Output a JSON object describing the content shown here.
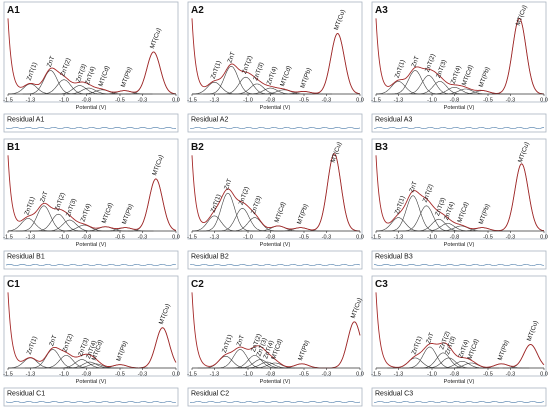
{
  "chart_data": [
    {
      "id": "A1",
      "type": "line",
      "residual_label": "Residual  A1",
      "xlabel": "Potential (V)",
      "xlim": [
        -1.5,
        0
      ],
      "xticks": [
        "-1.5",
        "-1.3",
        "-1.0",
        "-0.8",
        "-0.5",
        "-0.3",
        "0.0"
      ],
      "peaks": [
        {
          "label": "ZnT(1)",
          "x": -1.3,
          "y": 0.12
        },
        {
          "label": "ZnT",
          "x": -1.12,
          "y": 0.28
        },
        {
          "label": "ZnT(2)",
          "x": -1.0,
          "y": 0.17
        },
        {
          "label": "ZnT(3)",
          "x": -0.86,
          "y": 0.1
        },
        {
          "label": "ZnT(4)",
          "x": -0.78,
          "y": 0.07
        },
        {
          "label": "MT(Cd)",
          "x": -0.66,
          "y": 0.05
        },
        {
          "label": "MT(Pb)",
          "x": -0.46,
          "y": 0.04
        },
        {
          "label": "MT(Cu)",
          "x": -0.2,
          "y": 0.5
        }
      ]
    },
    {
      "id": "A2",
      "type": "line",
      "residual_label": "Residual  A2",
      "xlabel": "Potential (V)",
      "xlim": [
        -1.5,
        0
      ],
      "xticks": [
        "-1.5",
        "-1.3",
        "-1.0",
        "-0.8",
        "-0.5",
        "-0.3",
        "0.0"
      ],
      "peaks": [
        {
          "label": "ZnT(1)",
          "x": -1.3,
          "y": 0.14
        },
        {
          "label": "ZnT",
          "x": -1.15,
          "y": 0.33
        },
        {
          "label": "ZnT(2)",
          "x": -1.02,
          "y": 0.2
        },
        {
          "label": "ZnT(3)",
          "x": -0.92,
          "y": 0.12
        },
        {
          "label": "ZnT(4)",
          "x": -0.8,
          "y": 0.07
        },
        {
          "label": "MT(Cd)",
          "x": -0.68,
          "y": 0.05
        },
        {
          "label": "MT(Pb)",
          "x": -0.5,
          "y": 0.03
        },
        {
          "label": "MT(Cu)",
          "x": -0.2,
          "y": 0.72
        }
      ]
    },
    {
      "id": "A3",
      "type": "line",
      "residual_label": "Residual  A3",
      "xlabel": "Potential (V)",
      "xlim": [
        -1.5,
        0
      ],
      "xticks": [
        "-1.5",
        "-1.3",
        "-1.0",
        "-0.8",
        "-0.5",
        "-0.3",
        "0.0"
      ],
      "peaks": [
        {
          "label": "ZnT(1)",
          "x": -1.3,
          "y": 0.15
        },
        {
          "label": "ZnT",
          "x": -1.15,
          "y": 0.28
        },
        {
          "label": "ZnT(2)",
          "x": -1.03,
          "y": 0.22
        },
        {
          "label": "ZnT(3)",
          "x": -0.93,
          "y": 0.15
        },
        {
          "label": "ZnT(4)",
          "x": -0.8,
          "y": 0.08
        },
        {
          "label": "MT(Cd)",
          "x": -0.7,
          "y": 0.06
        },
        {
          "label": "MT(Pb)",
          "x": -0.55,
          "y": 0.04
        },
        {
          "label": "MT(Cu)",
          "x": -0.22,
          "y": 0.9
        }
      ]
    },
    {
      "id": "B1",
      "type": "line",
      "residual_label": "Residual  B1",
      "xlabel": "Potential (V)",
      "xlim": [
        -1.5,
        0
      ],
      "xticks": [
        "-1.5",
        "-1.3",
        "-1.0",
        "-0.8",
        "-0.5",
        "-0.3",
        "0.0"
      ],
      "peaks": [
        {
          "label": "ZnT(1)",
          "x": -1.32,
          "y": 0.15
        },
        {
          "label": "ZnT",
          "x": -1.18,
          "y": 0.3
        },
        {
          "label": "ZnT(2)",
          "x": -1.05,
          "y": 0.2
        },
        {
          "label": "ZnT(3)",
          "x": -0.95,
          "y": 0.13
        },
        {
          "label": "ZnT(4)",
          "x": -0.82,
          "y": 0.07
        },
        {
          "label": "MT(Cd)",
          "x": -0.63,
          "y": 0.05
        },
        {
          "label": "MT(Pb)",
          "x": -0.45,
          "y": 0.04
        },
        {
          "label": "MT(Cu)",
          "x": -0.18,
          "y": 0.62
        }
      ]
    },
    {
      "id": "B2",
      "type": "line",
      "residual_label": "Residual  B2",
      "xlabel": "Potential (V)",
      "xlim": [
        -1.5,
        0
      ],
      "xticks": [
        "-1.5",
        "-1.3",
        "-1.0",
        "-0.8",
        "-0.5",
        "-0.3",
        "0.0"
      ],
      "peaks": [
        {
          "label": "ZnT(1)",
          "x": -1.3,
          "y": 0.18
        },
        {
          "label": "ZnT",
          "x": -1.18,
          "y": 0.45
        },
        {
          "label": "ZnT(2)",
          "x": -1.05,
          "y": 0.27
        },
        {
          "label": "ZnT(3)",
          "x": -0.94,
          "y": 0.16
        },
        {
          "label": "MT(Cd)",
          "x": -0.73,
          "y": 0.06
        },
        {
          "label": "MT(Pb)",
          "x": -0.53,
          "y": 0.04
        },
        {
          "label": "MT(Cu)",
          "x": -0.23,
          "y": 0.92
        }
      ]
    },
    {
      "id": "B3",
      "type": "line",
      "residual_label": "Residual  B3",
      "xlabel": "Potential (V)",
      "xlim": [
        -1.5,
        0
      ],
      "xticks": [
        "-1.5",
        "-1.3",
        "-1.0",
        "-0.8",
        "-0.5",
        "-0.3",
        "0.0"
      ],
      "peaks": [
        {
          "label": "ZnT(1)",
          "x": -1.3,
          "y": 0.16
        },
        {
          "label": "ZnT",
          "x": -1.17,
          "y": 0.42
        },
        {
          "label": "ZnT(2)",
          "x": -1.05,
          "y": 0.3
        },
        {
          "label": "ZnT(3)",
          "x": -0.94,
          "y": 0.14
        },
        {
          "label": "ZnT(4)",
          "x": -0.86,
          "y": 0.09
        },
        {
          "label": "MT(Cd)",
          "x": -0.74,
          "y": 0.06
        },
        {
          "label": "MT(Pb)",
          "x": -0.55,
          "y": 0.04
        },
        {
          "label": "MT(Cu)",
          "x": -0.2,
          "y": 0.8
        }
      ]
    },
    {
      "id": "C1",
      "type": "line",
      "residual_label": "Residual  C1",
      "xlabel": "Potential (V)",
      "xlim": [
        -1.5,
        0
      ],
      "xticks": [
        "-1.5",
        "-1.3",
        "-1.0",
        "-0.8",
        "-0.5",
        "-0.3",
        "0.0"
      ],
      "peaks": [
        {
          "label": "ZnT(1)",
          "x": -1.3,
          "y": 0.12
        },
        {
          "label": "ZnT",
          "x": -1.1,
          "y": 0.22
        },
        {
          "label": "ZnT(2)",
          "x": -0.98,
          "y": 0.15
        },
        {
          "label": "ZnT(3)",
          "x": -0.84,
          "y": 0.1
        },
        {
          "label": "ZnT(4)",
          "x": -0.77,
          "y": 0.07
        },
        {
          "label": "MT(Cd)",
          "x": -0.72,
          "y": 0.05
        },
        {
          "label": "MT(Pb)",
          "x": -0.5,
          "y": 0.04
        },
        {
          "label": "MT(Cu)",
          "x": -0.12,
          "y": 0.48
        }
      ]
    },
    {
      "id": "C2",
      "type": "line",
      "residual_label": "Residual  C2",
      "xlabel": "Potential (V)",
      "xlim": [
        -1.5,
        0
      ],
      "xticks": [
        "-1.5",
        "-1.3",
        "-1.0",
        "-0.8",
        "-0.5",
        "-0.3",
        "0.0"
      ],
      "peaks": [
        {
          "label": "ZnT(1)",
          "x": -1.2,
          "y": 0.14
        },
        {
          "label": "ZnT",
          "x": -1.07,
          "y": 0.22
        },
        {
          "label": "ZnT(2)",
          "x": -0.94,
          "y": 0.15
        },
        {
          "label": "ZnT(3)",
          "x": -0.89,
          "y": 0.1
        },
        {
          "label": "ZnT(4)",
          "x": -0.83,
          "y": 0.07
        },
        {
          "label": "MT(Cd)",
          "x": -0.76,
          "y": 0.06
        },
        {
          "label": "MT(Pb)",
          "x": -0.52,
          "y": 0.05
        },
        {
          "label": "MT(Cu)",
          "x": -0.05,
          "y": 0.55
        }
      ]
    },
    {
      "id": "C3",
      "type": "line",
      "residual_label": "Residual  C3",
      "xlabel": "Potential (V)",
      "xlim": [
        -1.5,
        0
      ],
      "xticks": [
        "-1.5",
        "-1.3",
        "-1.0",
        "-0.8",
        "-0.5",
        "-0.3",
        "0.0"
      ],
      "peaks": [
        {
          "label": "ZnT(1)",
          "x": -1.15,
          "y": 0.12
        },
        {
          "label": "ZnT",
          "x": -1.02,
          "y": 0.25
        },
        {
          "label": "ZnT(2)",
          "x": -0.9,
          "y": 0.18
        },
        {
          "label": "ZnT(3)",
          "x": -0.85,
          "y": 0.12
        },
        {
          "label": "ZnT(4)",
          "x": -0.73,
          "y": 0.08
        },
        {
          "label": "MT(Cd)",
          "x": -0.65,
          "y": 0.06
        },
        {
          "label": "MT(Pb)",
          "x": -0.38,
          "y": 0.05
        },
        {
          "label": "MT(Cu)",
          "x": -0.12,
          "y": 0.28
        }
      ]
    }
  ],
  "colors": {
    "fit": "#a52a2a",
    "component": "#404040",
    "residual": "#4a7aa8",
    "panel_border": "#aab4c0",
    "axis": "#333333"
  }
}
